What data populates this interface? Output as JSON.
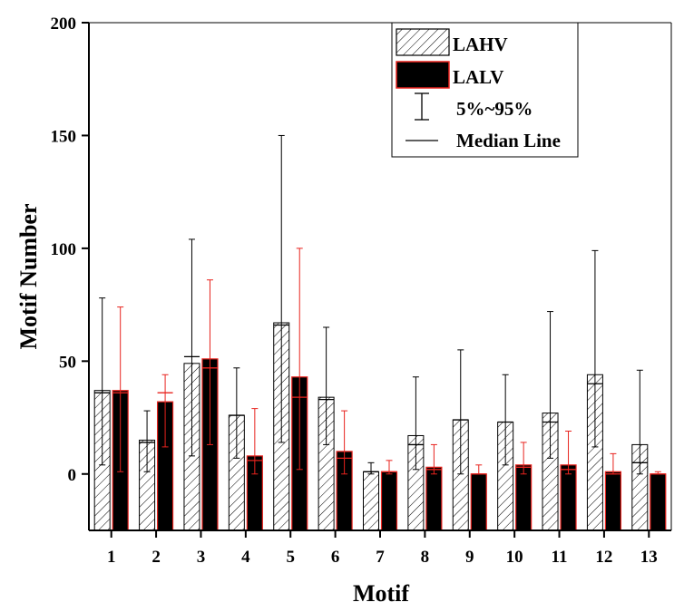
{
  "chart_data": {
    "type": "bar",
    "xlabel": "Motif",
    "ylabel": "Motif Number",
    "categories": [
      "1",
      "2",
      "3",
      "4",
      "5",
      "6",
      "7",
      "8",
      "9",
      "10",
      "11",
      "12",
      "13"
    ],
    "y_ticks": [
      0,
      50,
      100,
      150,
      200
    ],
    "ylim": [
      -25,
      200
    ],
    "grid": false,
    "legend_position": "top-right",
    "series": [
      {
        "name": "LAHV",
        "fill": "hatched",
        "error_color": "#000000",
        "values": [
          37,
          15,
          49,
          26,
          67,
          34,
          1,
          17,
          24,
          23,
          27,
          44,
          13
        ],
        "medians": [
          36,
          14,
          52,
          26,
          66,
          33,
          1,
          13,
          24,
          23,
          23,
          40,
          5
        ],
        "p5": [
          4,
          1,
          8,
          7,
          14,
          13,
          0,
          2,
          0,
          4,
          7,
          12,
          0
        ],
        "p95": [
          78,
          28,
          104,
          47,
          150,
          65,
          5,
          43,
          55,
          44,
          72,
          99,
          46
        ]
      },
      {
        "name": "LALV",
        "fill": "black",
        "error_color": "#e8231e",
        "values": [
          37,
          32,
          51,
          8,
          43,
          10,
          1,
          3,
          0,
          4,
          4,
          1,
          0
        ],
        "medians": [
          36,
          36,
          47,
          6,
          34,
          7,
          1,
          2,
          0,
          3,
          2,
          0,
          0
        ],
        "p5": [
          1,
          12,
          13,
          0,
          2,
          0,
          0,
          0,
          0,
          0,
          0,
          0,
          0
        ],
        "p95": [
          74,
          44,
          86,
          29,
          100,
          28,
          6,
          13,
          4,
          14,
          19,
          9,
          1
        ]
      }
    ],
    "legend": {
      "entries": [
        "LAHV",
        "LALV",
        "5%~95%",
        "Median Line"
      ]
    }
  }
}
